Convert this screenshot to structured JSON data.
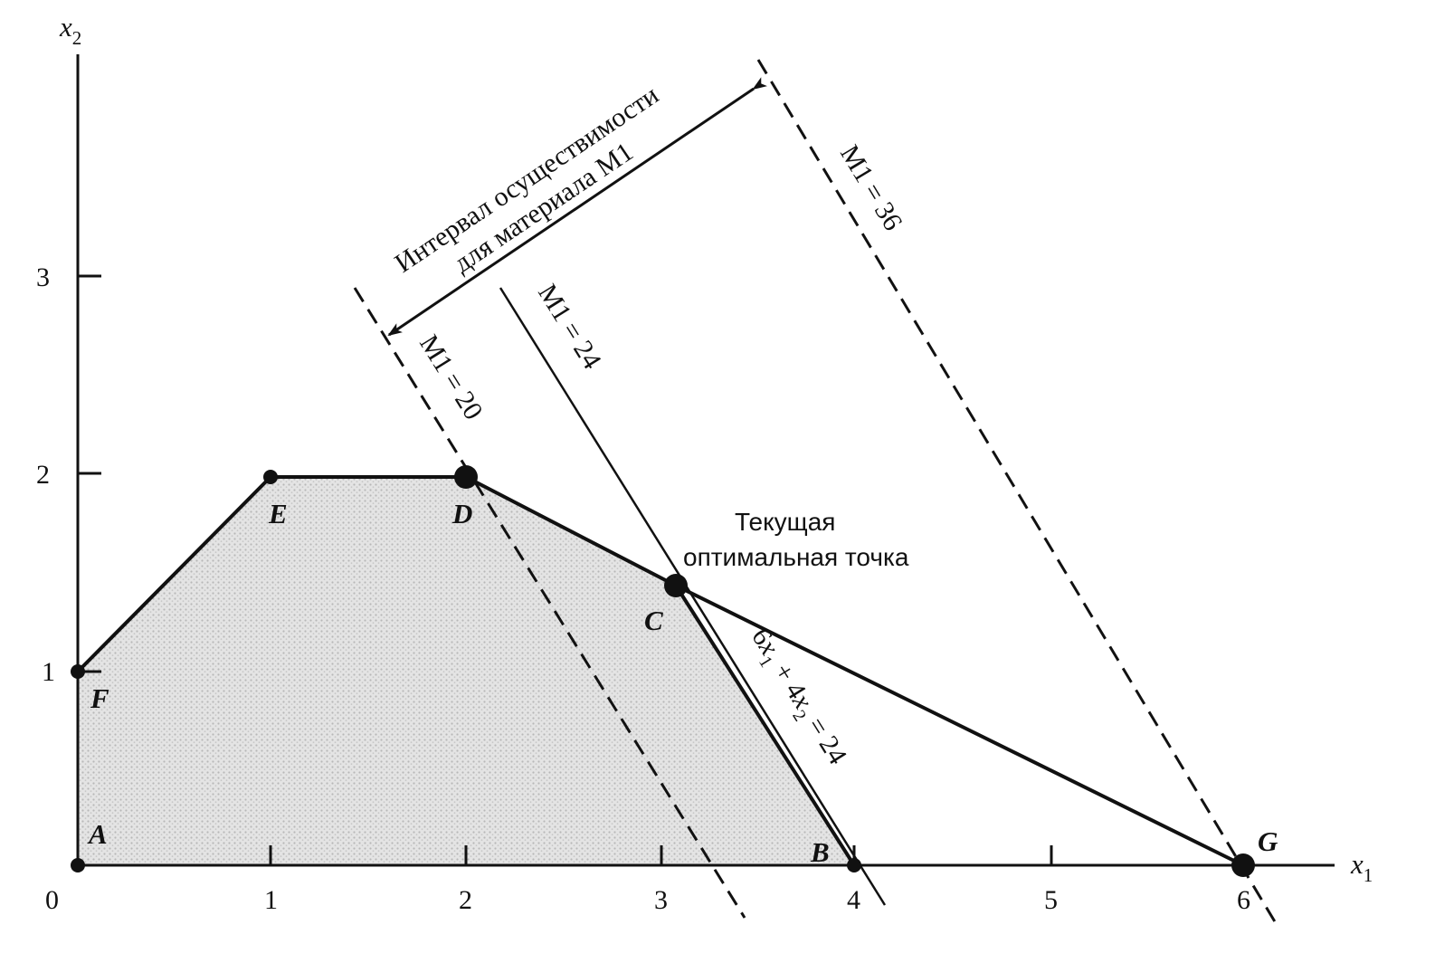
{
  "axes": {
    "x_label": "x",
    "x_sub": "1",
    "y_label": "x",
    "y_sub": "2",
    "origin_label": "0",
    "x_ticks": [
      "1",
      "2",
      "3",
      "4",
      "5",
      "6"
    ],
    "y_ticks": [
      "1",
      "2",
      "3"
    ]
  },
  "points": [
    {
      "id": "A",
      "label": "A",
      "x": 0,
      "y": 0,
      "marker": "small"
    },
    {
      "id": "B",
      "label": "B",
      "x": 4,
      "y": 0,
      "marker": "small"
    },
    {
      "id": "C",
      "label": "C",
      "x": 3.0769,
      "y": 1.3846,
      "marker": "large"
    },
    {
      "id": "D",
      "label": "D",
      "x": 2,
      "y": 2,
      "marker": "large"
    },
    {
      "id": "E",
      "label": "E",
      "x": 1,
      "y": 2,
      "marker": "small"
    },
    {
      "id": "F",
      "label": "F",
      "x": 0,
      "y": 1,
      "marker": "small"
    },
    {
      "id": "G",
      "label": "G",
      "x": 6,
      "y": 0,
      "marker": "large"
    }
  ],
  "feasible_region": [
    "A",
    "B",
    "C",
    "D",
    "E",
    "F"
  ],
  "lines": {
    "m1_20": {
      "label": "M1 = 20"
    },
    "m1_24": {
      "label": "M1 = 24"
    },
    "m1_36": {
      "label": "M1 = 36"
    },
    "constraint": {
      "label_parts": [
        "6",
        "x",
        "1",
        " + 4",
        "x",
        "2",
        " = 24"
      ]
    }
  },
  "annotations": {
    "interval_line1": "Интервал осуществимости",
    "interval_line2": "для материала М1",
    "optimal_line1": "Текущая",
    "optimal_line2": "оптимальная точка"
  }
}
